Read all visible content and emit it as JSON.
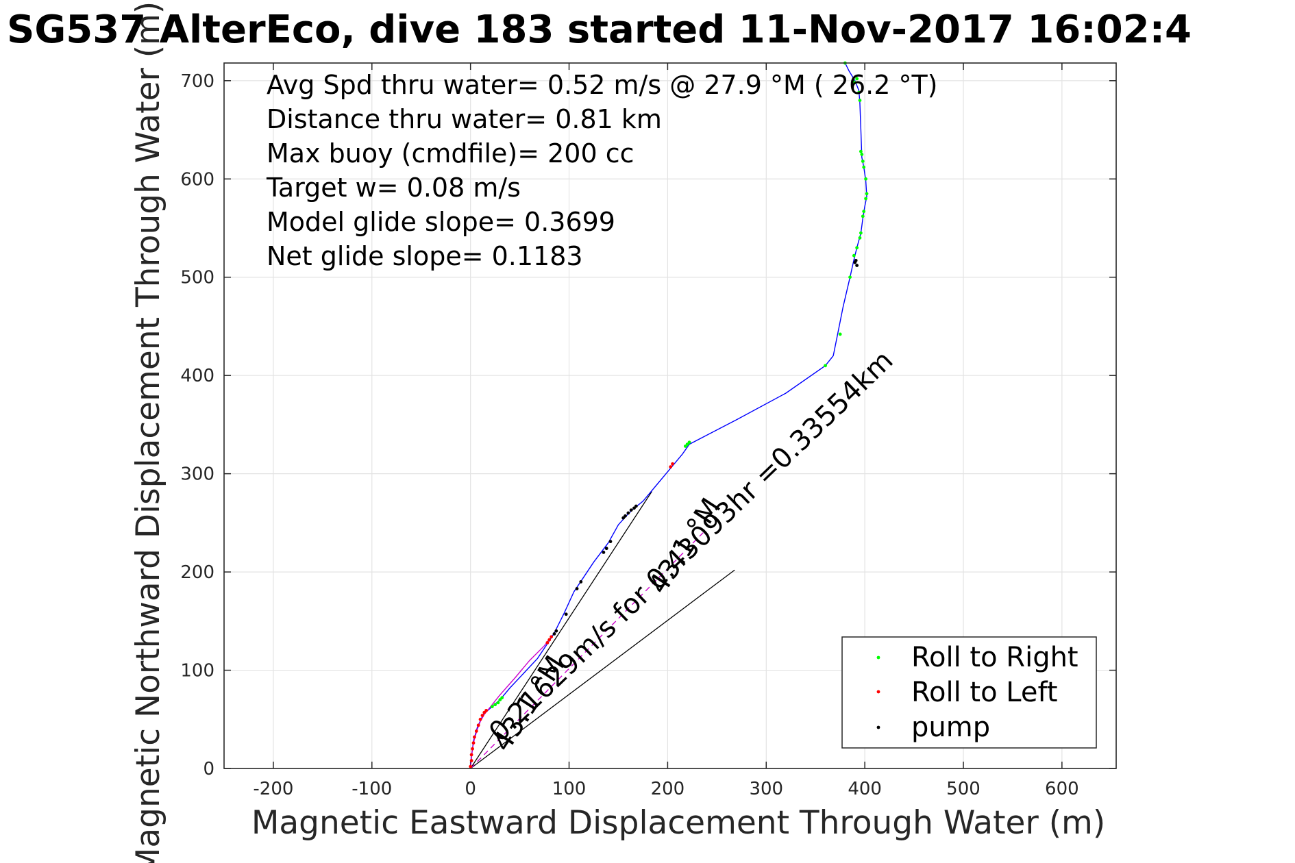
{
  "chart_data": {
    "type": "scatter",
    "title": "SG537 AlterEco, dive 183 started 11-Nov-2017 16:02:4",
    "xlabel": "Magnetic Eastward Displacement Through Water (m)",
    "ylabel": "Magnetic Northward Displacement Through Water (m)",
    "xlim": [
      -250,
      655
    ],
    "ylim": [
      0,
      718
    ],
    "xticks": [
      -200,
      -100,
      0,
      100,
      200,
      300,
      400,
      500,
      600
    ],
    "yticks": [
      0,
      100,
      200,
      300,
      400,
      500,
      600,
      700
    ],
    "grid": true,
    "legend_position": "bottom-right",
    "stats": [
      "Avg Spd thru water=  0.52 m/s @  27.9 °M ( 26.2 °T)",
      "Distance thru water=  0.81 km",
      "Max buoy (cmdfile)= 200 cc",
      "Target w= 0.08 m/s",
      "Model glide slope= 0.3699",
      "Net glide slope= 0.1183"
    ],
    "series": [
      {
        "name": "track",
        "color": "#0000ff",
        "role": "line",
        "points": [
          [
            0,
            0
          ],
          [
            1,
            12
          ],
          [
            3,
            28
          ],
          [
            7,
            42
          ],
          [
            13,
            55
          ],
          [
            22,
            63
          ],
          [
            30,
            70
          ],
          [
            40,
            82
          ],
          [
            55,
            98
          ],
          [
            68,
            112
          ],
          [
            80,
            130
          ],
          [
            85,
            138
          ],
          [
            95,
            158
          ],
          [
            105,
            180
          ],
          [
            115,
            195
          ],
          [
            125,
            210
          ],
          [
            140,
            230
          ],
          [
            150,
            248
          ],
          [
            158,
            257
          ],
          [
            165,
            264
          ],
          [
            175,
            272
          ],
          [
            190,
            290
          ],
          [
            205,
            308
          ],
          [
            215,
            320
          ],
          [
            222,
            330
          ],
          [
            270,
            355
          ],
          [
            320,
            382
          ],
          [
            360,
            410
          ],
          [
            368,
            420
          ],
          [
            372,
            440
          ],
          [
            378,
            470
          ],
          [
            385,
            500
          ],
          [
            389,
            518
          ],
          [
            392,
            530
          ],
          [
            396,
            545
          ],
          [
            398,
            560
          ],
          [
            400,
            572
          ],
          [
            402,
            582
          ],
          [
            401,
            598
          ],
          [
            399,
            612
          ],
          [
            397,
            622
          ],
          [
            396,
            650
          ],
          [
            395,
            678
          ],
          [
            394,
            690
          ],
          [
            390,
            700
          ],
          [
            384,
            710
          ],
          [
            380,
            718
          ]
        ]
      },
      {
        "name": "Roll to Right",
        "color": "#00ff00",
        "role": "points",
        "points": [
          [
            22,
            63
          ],
          [
            25,
            65
          ],
          [
            28,
            67
          ],
          [
            30,
            70
          ],
          [
            32,
            72
          ],
          [
            218,
            328
          ],
          [
            220,
            330
          ],
          [
            222,
            332
          ],
          [
            360,
            410
          ],
          [
            375,
            442
          ],
          [
            385,
            500
          ],
          [
            389,
            522
          ],
          [
            392,
            530
          ],
          [
            395,
            540
          ],
          [
            396,
            545
          ],
          [
            398,
            562
          ],
          [
            399,
            567
          ],
          [
            401,
            580
          ],
          [
            402,
            585
          ],
          [
            401,
            600
          ],
          [
            399,
            612
          ],
          [
            398,
            618
          ],
          [
            397,
            625
          ],
          [
            396,
            628
          ],
          [
            395,
            680
          ],
          [
            394,
            688
          ],
          [
            390,
            698
          ],
          [
            388,
            700
          ],
          [
            392,
            702
          ],
          [
            380,
            718
          ]
        ]
      },
      {
        "name": "Roll to Left",
        "color": "#ff0000",
        "role": "points",
        "points": [
          [
            0,
            2
          ],
          [
            1,
            8
          ],
          [
            1,
            14
          ],
          [
            2,
            20
          ],
          [
            3,
            26
          ],
          [
            4,
            32
          ],
          [
            6,
            38
          ],
          [
            8,
            44
          ],
          [
            10,
            50
          ],
          [
            12,
            54
          ],
          [
            14,
            57
          ],
          [
            16,
            59
          ],
          [
            78,
            128
          ],
          [
            80,
            131
          ],
          [
            82,
            134
          ],
          [
            203,
            307
          ],
          [
            205,
            310
          ]
        ]
      },
      {
        "name": "pump",
        "color": "#000000",
        "role": "points",
        "points": [
          [
            85,
            137
          ],
          [
            87,
            140
          ],
          [
            97,
            157
          ],
          [
            108,
            183
          ],
          [
            112,
            190
          ],
          [
            135,
            220
          ],
          [
            138,
            224
          ],
          [
            142,
            231
          ],
          [
            155,
            255
          ],
          [
            157,
            257
          ],
          [
            160,
            260
          ],
          [
            163,
            263
          ],
          [
            166,
            265
          ],
          [
            168,
            267
          ],
          [
            390,
            515
          ],
          [
            391,
            517
          ],
          [
            392,
            512
          ]
        ]
      },
      {
        "name": "magenta",
        "color": "#cc00cc",
        "role": "line",
        "points": [
          [
            0,
            0
          ],
          [
            1,
            10
          ],
          [
            2,
            20
          ],
          [
            4,
            30
          ],
          [
            7,
            40
          ],
          [
            10,
            48
          ],
          [
            14,
            55
          ],
          [
            18,
            60
          ],
          [
            30,
            75
          ],
          [
            45,
            92
          ],
          [
            60,
            110
          ],
          [
            75,
            125
          ],
          [
            80,
            132
          ]
        ]
      },
      {
        "name": "magenta-dashed",
        "color": "#cc00cc",
        "role": "dashed",
        "points": [
          [
            0,
            0
          ],
          [
            236,
            240
          ]
        ]
      }
    ],
    "reference_lines": [
      {
        "points": [
          [
            0,
            0
          ],
          [
            184,
            282
          ]
        ]
      },
      {
        "points": [
          [
            0,
            0
          ],
          [
            268,
            202
          ]
        ]
      }
    ],
    "legend": [
      {
        "label": "Roll to Right",
        "color": "#00ff00"
      },
      {
        "label": "Roll to Left",
        "color": "#ff0000"
      },
      {
        "label": "pump",
        "color": "#000000"
      }
    ],
    "annotations": [
      "0.21629m/s for 0.43093hr =0.33554km",
      "43.1 °M",
      "43.1 °M"
    ]
  }
}
